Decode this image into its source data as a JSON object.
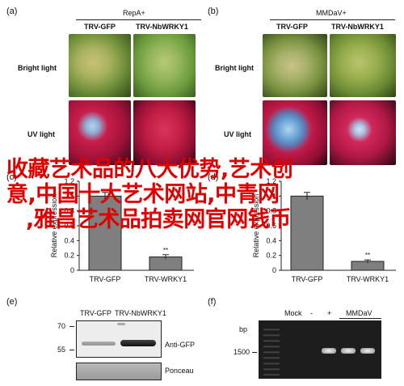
{
  "panel_a": {
    "letter": "(a)",
    "virus": "RepA+",
    "strains": [
      "TRV-GFP",
      "TRV-NbWRKY1"
    ],
    "row_labels": [
      "Bright light",
      "UV light"
    ]
  },
  "panel_b": {
    "letter": "(b)",
    "virus": "MMDaV+",
    "strains": [
      "TRV-GFP",
      "TRV-NbWRKY1"
    ],
    "row_labels": [
      "Bright light",
      "UV light"
    ]
  },
  "panel_c": {
    "letter": "(c)",
    "ylabel": "Relative expression",
    "yticks": [
      "1.2",
      "1",
      "0.8",
      "0.6",
      "0.4",
      "0.2",
      "0"
    ],
    "significance": "**"
  },
  "panel_d": {
    "letter": "(d)",
    "ylabel": "Relative expression",
    "yticks": [
      "1.2",
      "1",
      "0.8",
      "0.6",
      "0.4",
      "0.2",
      "0"
    ],
    "significance": "**"
  },
  "panel_e": {
    "letter": "(e)",
    "lanes": [
      "TRV-GFP",
      "TRV-NbWRKY1"
    ],
    "markers": [
      "70",
      "55"
    ],
    "blot_labels": [
      "Anti-GFP",
      "Ponceau"
    ]
  },
  "panel_f": {
    "letter": "(f)",
    "unit": "bp",
    "marker": "1500",
    "lanes": [
      "Mock",
      "-",
      "+",
      "MMDaV"
    ]
  },
  "overlay_lines": [
    "收藏艺术品的八大优势,艺术创",
    "意,中国十大艺术网站,中青网",
    ",雅昌艺术品拍卖网官网钱币"
  ],
  "chart_data": [
    {
      "type": "bar",
      "title": "",
      "ylabel": "Relative expression",
      "categories": [
        "TRV-GFP",
        "TRV-WRKY1"
      ],
      "values": [
        1.0,
        0.18
      ],
      "errors": [
        0.05,
        0.03
      ],
      "ylim": [
        0,
        1.2
      ],
      "annotations": [
        "",
        "**"
      ],
      "legend": "none",
      "grid": false
    },
    {
      "type": "bar",
      "title": "",
      "ylabel": "Relative expression",
      "categories": [
        "TRV-GFP",
        "TRV-WRKY1"
      ],
      "values": [
        1.0,
        0.12
      ],
      "errors": [
        0.05,
        0.02
      ],
      "ylim": [
        0,
        1.2
      ],
      "annotations": [
        "",
        "**"
      ],
      "legend": "none",
      "grid": false
    }
  ]
}
